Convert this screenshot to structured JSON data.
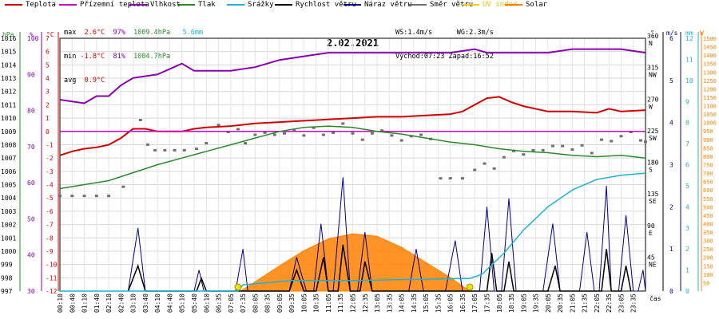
{
  "legend": [
    {
      "label": "Teplota",
      "color": "#d40000"
    },
    {
      "label": "Přízemní teplota",
      "color": "#cc00cc"
    },
    {
      "label": "Vlhkost",
      "color": "#8a00b0"
    },
    {
      "label": "Tlak",
      "color": "#2a8a2a"
    },
    {
      "label": "Srážky",
      "color": "#1cb4d4"
    },
    {
      "label": "Rychlost větru",
      "color": "#000000"
    },
    {
      "label": "Náraz větru",
      "color": "#00008c"
    },
    {
      "label": "Směr větru",
      "color": "#707070"
    },
    {
      "label": "UV index",
      "color": "#f0d000"
    },
    {
      "label": "Solar",
      "color": "#ff8000"
    }
  ],
  "stats": {
    "max_label": "max",
    "max_temp": "2.6°C",
    "max_hum": "97%",
    "max_press": "1009.4hPa",
    "rain": "5.6mm",
    "min_label": "min",
    "min_temp": "-1.8°C",
    "min_hum": "81%",
    "min_press": "1004.7hPa",
    "avg_label": "avg",
    "avg_temp": "0.9°C",
    "ws": "WS:1.4m/s",
    "wg": "WG:2.3m/s",
    "sunrise": "Východ:07:23",
    "sunset": "Západ:16:52"
  },
  "chart_data": {
    "type": "line",
    "title": "2.02.2021",
    "x_times": [
      "00:10",
      "00:40",
      "01:10",
      "01:40",
      "02:10",
      "02:40",
      "03:10",
      "03:40",
      "04:10",
      "04:40",
      "05:10",
      "05:40",
      "06:10",
      "06:35",
      "07:05",
      "07:35",
      "08:05",
      "08:35",
      "09:05",
      "09:35",
      "10:05",
      "10:35",
      "11:05",
      "11:35",
      "12:05",
      "12:35",
      "13:05",
      "13:35",
      "14:05",
      "14:35",
      "15:05",
      "15:35",
      "16:05",
      "16:35",
      "17:05",
      "17:35",
      "18:05",
      "18:35",
      "19:05",
      "19:35",
      "20:05",
      "20:35",
      "21:05",
      "21:35",
      "22:05",
      "22:35",
      "23:05",
      "23:35"
    ],
    "x_unit": "čas",
    "axes": {
      "pressure": {
        "label": "hPa",
        "min": 997,
        "max": 1016,
        "ticks": [
          "997",
          "998",
          "999",
          "1000",
          "1001",
          "1002",
          "1003",
          "1004",
          "1005",
          "1006",
          "1007",
          "1008",
          "1009",
          "1010",
          "1011",
          "1012",
          "1013",
          "1014",
          "1015",
          "1016"
        ]
      },
      "humidity": {
        "label": "%",
        "min": 30,
        "max": 100,
        "ticks": [
          "30",
          "40",
          "50",
          "60",
          "70",
          "80",
          "90",
          "100"
        ]
      },
      "temperature": {
        "label": "°C",
        "min": -12,
        "max": 7,
        "ticks": [
          "-12",
          "-11",
          "-10",
          "-9",
          "-8",
          "-7",
          "-6",
          "-5",
          "-4",
          "-3",
          "-2",
          "-1",
          "0",
          "1",
          "2",
          "3",
          "4",
          "5",
          "6",
          "7"
        ]
      },
      "direction": {
        "label": "°",
        "min": 0,
        "max": 360,
        "ticks": [
          {
            "value": 45,
            "deg": "45",
            "name": "NE"
          },
          {
            "value": 90,
            "deg": "90",
            "name": "E"
          },
          {
            "value": 135,
            "deg": "135",
            "name": "SE"
          },
          {
            "value": 180,
            "deg": "180",
            "name": "S"
          },
          {
            "value": 225,
            "deg": "225",
            "name": "SW"
          },
          {
            "value": 270,
            "deg": "270",
            "name": "W"
          },
          {
            "value": 315,
            "deg": "315",
            "name": "NW"
          },
          {
            "value": 360,
            "deg": "360",
            "name": "N"
          }
        ]
      },
      "wind": {
        "label": "m/s",
        "min": 0,
        "max": 6,
        "ticks": [
          "0",
          "1",
          "2",
          "3",
          "4",
          "5",
          "6"
        ]
      },
      "rain": {
        "label": "mm",
        "min": 0,
        "max": 12,
        "ticks": [
          "0",
          "1",
          "2",
          "3",
          "4",
          "5",
          "6",
          "7",
          "8",
          "9",
          "10",
          "11",
          "12"
        ]
      },
      "solar": {
        "label": "W",
        "min": 0,
        "max": 1500,
        "ticks": [
          "50",
          "100",
          "150",
          "200",
          "250",
          "300",
          "350",
          "400",
          "450",
          "500",
          "550",
          "600",
          "650",
          "700",
          "750",
          "800",
          "850",
          "900",
          "950",
          "1000",
          "1050",
          "1100",
          "1150",
          "1200",
          "1250",
          "1300",
          "1350",
          "1400",
          "1450",
          "1500"
        ]
      }
    },
    "series": [
      {
        "name": "Teplota",
        "axis": "temperature",
        "color": "#d40000",
        "points": [
          [
            0,
            -1.8
          ],
          [
            0.5,
            -1.5
          ],
          [
            1,
            -1.3
          ],
          [
            1.5,
            -1.2
          ],
          [
            2,
            -1
          ],
          [
            2.5,
            -0.5
          ],
          [
            3,
            0.2
          ],
          [
            3.5,
            0.2
          ],
          [
            4,
            0
          ],
          [
            4.5,
            0
          ],
          [
            5,
            0
          ],
          [
            5.5,
            0.2
          ],
          [
            6,
            0.3
          ],
          [
            7,
            0.4
          ],
          [
            8,
            0.6
          ],
          [
            9,
            0.7
          ],
          [
            10,
            0.8
          ],
          [
            11,
            0.9
          ],
          [
            12,
            1
          ],
          [
            13,
            1.1
          ],
          [
            14,
            1.1
          ],
          [
            15,
            1.2
          ],
          [
            16,
            1.3
          ],
          [
            16.5,
            1.5
          ],
          [
            17,
            2
          ],
          [
            17.5,
            2.5
          ],
          [
            18,
            2.6
          ],
          [
            18.5,
            2.2
          ],
          [
            19,
            1.9
          ],
          [
            20,
            1.5
          ],
          [
            21,
            1.5
          ],
          [
            22,
            1.4
          ],
          [
            22.5,
            1.7
          ],
          [
            23,
            1.5
          ],
          [
            24,
            1.6
          ]
        ]
      },
      {
        "name": "Přízemní teplota",
        "axis": "temperature",
        "color": "#cc00cc",
        "points": [
          [
            0,
            0
          ],
          [
            24,
            0
          ]
        ]
      },
      {
        "name": "Vlhkost",
        "axis": "humidity",
        "color": "#8a00b0",
        "points": [
          [
            0,
            83
          ],
          [
            1,
            82
          ],
          [
            1.5,
            84
          ],
          [
            2,
            84
          ],
          [
            2.5,
            87
          ],
          [
            3,
            89
          ],
          [
            4,
            90
          ],
          [
            5,
            93
          ],
          [
            5.5,
            91
          ],
          [
            6,
            91
          ],
          [
            7,
            91
          ],
          [
            8,
            92
          ],
          [
            9,
            94
          ],
          [
            10,
            95
          ],
          [
            11,
            96
          ],
          [
            12,
            96
          ],
          [
            13,
            96
          ],
          [
            14,
            96
          ],
          [
            15,
            96
          ],
          [
            16,
            96
          ],
          [
            17,
            97
          ],
          [
            17.5,
            96
          ],
          [
            18,
            96
          ],
          [
            19,
            96
          ],
          [
            20,
            96
          ],
          [
            21,
            97
          ],
          [
            22,
            97
          ],
          [
            23,
            97
          ],
          [
            24,
            96
          ]
        ]
      },
      {
        "name": "Tlak",
        "axis": "pressure",
        "color": "#2a8a2a",
        "points": [
          [
            0,
            1004.7
          ],
          [
            1,
            1005
          ],
          [
            2,
            1005.3
          ],
          [
            3,
            1005.9
          ],
          [
            4,
            1006.5
          ],
          [
            5,
            1007
          ],
          [
            6,
            1007.5
          ],
          [
            7,
            1008
          ],
          [
            8,
            1008.5
          ],
          [
            9,
            1009
          ],
          [
            10,
            1009.3
          ],
          [
            11,
            1009.4
          ],
          [
            12,
            1009.3
          ],
          [
            13,
            1009
          ],
          [
            14,
            1008.8
          ],
          [
            15,
            1008.5
          ],
          [
            16,
            1008.2
          ],
          [
            17,
            1008
          ],
          [
            18,
            1007.7
          ],
          [
            19,
            1007.5
          ],
          [
            20,
            1007.4
          ],
          [
            21,
            1007.2
          ],
          [
            22,
            1007.1
          ],
          [
            23,
            1007.2
          ],
          [
            24,
            1007
          ]
        ]
      },
      {
        "name": "Srážky",
        "axis": "rain",
        "color": "#1cb4d4",
        "points": [
          [
            0,
            0
          ],
          [
            7.3,
            0
          ],
          [
            7.5,
            0.3
          ],
          [
            9.5,
            0.5
          ],
          [
            12,
            0.5
          ],
          [
            16.8,
            0.6
          ],
          [
            17.3,
            0.8
          ],
          [
            18.2,
            1.8
          ],
          [
            19,
            2.9
          ],
          [
            20,
            4
          ],
          [
            21,
            4.8
          ],
          [
            22,
            5.3
          ],
          [
            23,
            5.5
          ],
          [
            24,
            5.6
          ]
        ]
      },
      {
        "name": "Solar",
        "axis": "solar",
        "color": "#ff8000",
        "points": [
          [
            7.4,
            0
          ],
          [
            8,
            55
          ],
          [
            9,
            150
          ],
          [
            10,
            240
          ],
          [
            11,
            310
          ],
          [
            12,
            340
          ],
          [
            13,
            325
          ],
          [
            14,
            260
          ],
          [
            15,
            170
          ],
          [
            16,
            80
          ],
          [
            16.8,
            0
          ]
        ]
      }
    ],
    "wind_gust": [
      [
        2.8,
        0
      ],
      [
        3.2,
        1.5
      ],
      [
        3.5,
        0
      ],
      [
        5.5,
        0
      ],
      [
        5.7,
        0.5
      ],
      [
        5.9,
        0
      ],
      [
        7.2,
        0
      ],
      [
        7.5,
        1
      ],
      [
        7.7,
        0
      ],
      [
        9.4,
        0
      ],
      [
        9.7,
        0.8
      ],
      [
        10.1,
        0
      ],
      [
        10.4,
        0
      ],
      [
        10.7,
        1.6
      ],
      [
        11,
        0
      ],
      [
        11.2,
        0
      ],
      [
        11.6,
        2.7
      ],
      [
        11.9,
        0
      ],
      [
        12.2,
        0
      ],
      [
        12.5,
        1.4
      ],
      [
        12.8,
        0
      ],
      [
        14.3,
        0
      ],
      [
        14.6,
        1
      ],
      [
        14.9,
        0
      ],
      [
        15.8,
        0
      ],
      [
        16.2,
        1.2
      ],
      [
        16.5,
        0
      ],
      [
        17.2,
        0
      ],
      [
        17.5,
        2
      ],
      [
        17.8,
        0
      ],
      [
        18.1,
        0
      ],
      [
        18.4,
        2.2
      ],
      [
        18.7,
        0
      ],
      [
        19.8,
        0
      ],
      [
        20.2,
        1.6
      ],
      [
        20.5,
        0
      ],
      [
        21.3,
        0
      ],
      [
        21.6,
        1.4
      ],
      [
        21.9,
        0
      ],
      [
        22.1,
        0
      ],
      [
        22.4,
        2.5
      ],
      [
        22.6,
        0
      ],
      [
        22.9,
        0
      ],
      [
        23.2,
        1.8
      ],
      [
        23.5,
        0
      ],
      [
        23.7,
        0
      ],
      [
        23.9,
        0.5
      ],
      [
        24,
        0
      ]
    ],
    "wind_speed": [
      [
        2.8,
        0
      ],
      [
        3.2,
        0.6
      ],
      [
        3.5,
        0
      ],
      [
        5.6,
        0
      ],
      [
        5.8,
        0.3
      ],
      [
        6,
        0
      ],
      [
        9.4,
        0
      ],
      [
        9.7,
        0.5
      ],
      [
        10,
        0
      ],
      [
        10.5,
        0
      ],
      [
        10.8,
        0.8
      ],
      [
        11,
        0
      ],
      [
        11.4,
        0
      ],
      [
        11.6,
        1.1
      ],
      [
        11.9,
        0
      ],
      [
        12.3,
        0
      ],
      [
        12.5,
        0.7
      ],
      [
        12.8,
        0
      ],
      [
        17.5,
        0
      ],
      [
        17.7,
        0.9
      ],
      [
        17.9,
        0
      ],
      [
        18.2,
        0
      ],
      [
        18.4,
        0.7
      ],
      [
        18.6,
        0
      ],
      [
        20,
        0
      ],
      [
        20.3,
        0.6
      ],
      [
        20.5,
        0
      ],
      [
        22.2,
        0
      ],
      [
        22.4,
        1
      ],
      [
        22.6,
        0
      ],
      [
        23,
        0
      ],
      [
        23.2,
        0.6
      ],
      [
        23.4,
        0
      ]
    ],
    "wind_direction": [
      [
        0,
        135
      ],
      [
        0.5,
        135
      ],
      [
        1,
        135
      ],
      [
        1.5,
        135
      ],
      [
        2,
        135
      ],
      [
        2.6,
        148
      ],
      [
        3.3,
        243
      ],
      [
        3.6,
        208
      ],
      [
        3.9,
        200
      ],
      [
        4.3,
        200
      ],
      [
        4.7,
        200
      ],
      [
        5.1,
        200
      ],
      [
        5.6,
        202
      ],
      [
        6,
        210
      ],
      [
        6.5,
        236
      ],
      [
        6.9,
        226
      ],
      [
        7.3,
        230
      ],
      [
        7.6,
        210
      ],
      [
        8,
        222
      ],
      [
        8.4,
        225
      ],
      [
        8.8,
        222
      ],
      [
        9.2,
        224
      ],
      [
        9.6,
        228
      ],
      [
        10,
        221
      ],
      [
        10.4,
        232
      ],
      [
        10.8,
        222
      ],
      [
        11.2,
        225
      ],
      [
        11.6,
        238
      ],
      [
        12,
        224
      ],
      [
        12.4,
        215
      ],
      [
        12.8,
        224
      ],
      [
        13.2,
        228
      ],
      [
        13.6,
        221
      ],
      [
        14,
        214
      ],
      [
        14.4,
        220
      ],
      [
        14.8,
        222
      ],
      [
        15.2,
        216
      ],
      [
        15.6,
        160
      ],
      [
        16,
        160
      ],
      [
        16.5,
        160
      ],
      [
        17,
        172
      ],
      [
        17.4,
        181
      ],
      [
        17.8,
        174
      ],
      [
        18.2,
        190
      ],
      [
        18.6,
        199
      ],
      [
        19,
        194
      ],
      [
        19.4,
        200
      ],
      [
        19.8,
        200
      ],
      [
        20.2,
        206
      ],
      [
        20.6,
        206
      ],
      [
        21,
        201
      ],
      [
        21.4,
        207
      ],
      [
        21.8,
        196
      ],
      [
        22.2,
        215
      ],
      [
        22.6,
        213
      ],
      [
        23,
        220
      ],
      [
        23.4,
        226
      ],
      [
        23.8,
        214
      ],
      [
        24,
        212
      ]
    ],
    "uv_markers": [
      [
        7.3,
        0
      ],
      [
        16.8,
        0
      ]
    ]
  }
}
